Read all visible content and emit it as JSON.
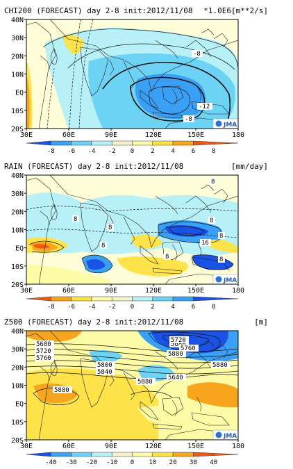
{
  "panels": [
    {
      "id": "chi200",
      "title": "CHI200 (FORECAST) day 2-8 init:2012/11/08",
      "unit": "*1.0E6[m**2/s]",
      "colorbar_ticks": [
        "-8",
        "-6",
        "-4",
        "-2",
        "0",
        "2",
        "4",
        "6",
        "8"
      ],
      "colorbar_colors": [
        "#1a52e6",
        "#3aa0f5",
        "#6dd3f5",
        "#b8f0f8",
        "#f4f2c8",
        "#fdfba6",
        "#fde24a",
        "#f6a51c",
        "#ef5a12"
      ],
      "contour_labels": [
        "-8",
        "-12",
        "-8"
      ],
      "credit": "JMA"
    },
    {
      "id": "rain",
      "title": "RAIN (FORECAST) day 2-8 init:2012/11/08",
      "unit": "[mm/day]",
      "colorbar_ticks": [
        "-8",
        "-6",
        "-4",
        "-2",
        "0",
        "2",
        "4",
        "6",
        "8"
      ],
      "colorbar_colors": [
        "#ef5a12",
        "#f6a51c",
        "#fde24a",
        "#fdfba6",
        "#f4f2c8",
        "#b8f0f8",
        "#6dd3f5",
        "#3aa0f5",
        "#1a52e6"
      ],
      "contour_labels": [
        "8",
        "8",
        "8",
        "16",
        "8",
        "8",
        "8",
        "8",
        "8"
      ],
      "credit": "JMA"
    },
    {
      "id": "z500",
      "title": "Z500 (FORECAST) day 2-8 init:2012/11/08",
      "unit": "[m]",
      "colorbar_ticks": [
        "-40",
        "-30",
        "-20",
        "-10",
        "0",
        "10",
        "20",
        "30",
        "40"
      ],
      "colorbar_colors": [
        "#1a52e6",
        "#3aa0f5",
        "#6dd3f5",
        "#b8f0f8",
        "#f4f2c8",
        "#fdfba6",
        "#fde24a",
        "#f6a51c",
        "#ef5a12"
      ],
      "contour_labels": [
        "5680",
        "5720",
        "5760",
        "5800",
        "5840",
        "5880",
        "5880",
        "5880",
        "5640",
        "5680",
        "5720",
        "5760",
        "5880"
      ],
      "credit": "JMA"
    }
  ],
  "map_axes": {
    "lon_ticks": [
      "30E",
      "60E",
      "90E",
      "120E",
      "150E",
      "180"
    ],
    "lat_ticks": [
      "40N",
      "30N",
      "20N",
      "10N",
      "EQ",
      "10S",
      "20S"
    ]
  }
}
